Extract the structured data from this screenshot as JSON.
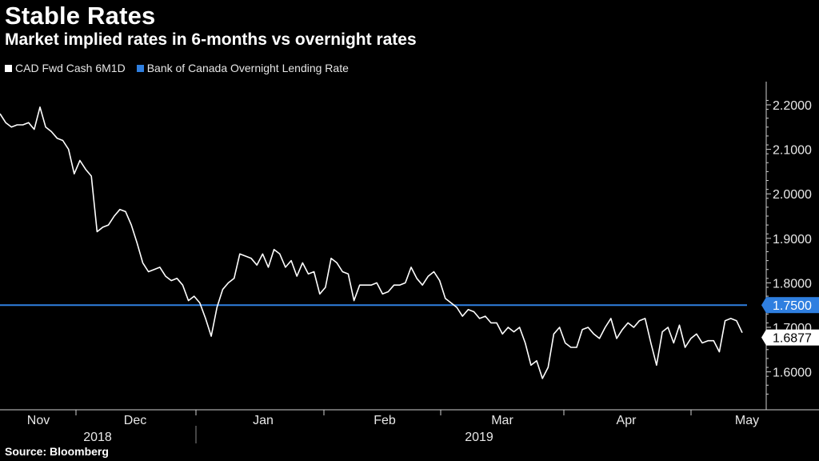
{
  "chart_data": {
    "type": "line",
    "title": "Stable Rates",
    "subtitle": "Market implied rates in 6-months vs overnight rates",
    "source": "Source: Bloomberg",
    "ylim": [
      1.55,
      2.22
    ],
    "yticks": [
      "2.2000",
      "2.1000",
      "2.0000",
      "1.9000",
      "1.8000",
      "1.7000",
      "1.6000"
    ],
    "months": [
      "Nov",
      "Dec",
      "Jan",
      "Feb",
      "Mar",
      "Apr",
      "May"
    ],
    "years": [
      "2018",
      "2019"
    ],
    "series": [
      {
        "name": "CAD Fwd Cash 6M1D",
        "color": "#ffffff",
        "last_label": "1.6877",
        "values": [
          2.18,
          2.16,
          2.15,
          2.155,
          2.155,
          2.16,
          2.145,
          2.195,
          2.15,
          2.14,
          2.125,
          2.12,
          2.1,
          2.045,
          2.075,
          2.055,
          2.04,
          1.915,
          1.925,
          1.93,
          1.95,
          1.965,
          1.96,
          1.93,
          1.89,
          1.845,
          1.825,
          1.83,
          1.835,
          1.815,
          1.805,
          1.81,
          1.795,
          1.76,
          1.77,
          1.755,
          1.72,
          1.68,
          1.745,
          1.785,
          1.8,
          1.81,
          1.865,
          1.86,
          1.855,
          1.84,
          1.865,
          1.835,
          1.875,
          1.865,
          1.835,
          1.85,
          1.815,
          1.845,
          1.82,
          1.825,
          1.775,
          1.79,
          1.855,
          1.845,
          1.825,
          1.82,
          1.76,
          1.795,
          1.795,
          1.795,
          1.8,
          1.775,
          1.78,
          1.795,
          1.795,
          1.8,
          1.835,
          1.81,
          1.795,
          1.815,
          1.825,
          1.805,
          1.765,
          1.755,
          1.745,
          1.725,
          1.74,
          1.735,
          1.72,
          1.725,
          1.71,
          1.71,
          1.685,
          1.7,
          1.69,
          1.7,
          1.665,
          1.615,
          1.625,
          1.585,
          1.61,
          1.685,
          1.7,
          1.665,
          1.655,
          1.655,
          1.695,
          1.7,
          1.685,
          1.675,
          1.7,
          1.72,
          1.675,
          1.695,
          1.71,
          1.7,
          1.715,
          1.72,
          1.665,
          1.615,
          1.69,
          1.7,
          1.665,
          1.705,
          1.655,
          1.675,
          1.685,
          1.665,
          1.67,
          1.67,
          1.645,
          1.715,
          1.72,
          1.715,
          1.688
        ]
      },
      {
        "name": "Bank of Canada Overnight Lending Rate",
        "color": "#2f7fe0",
        "last_label": "1.7500",
        "values": [
          1.75,
          1.75
        ]
      }
    ]
  }
}
